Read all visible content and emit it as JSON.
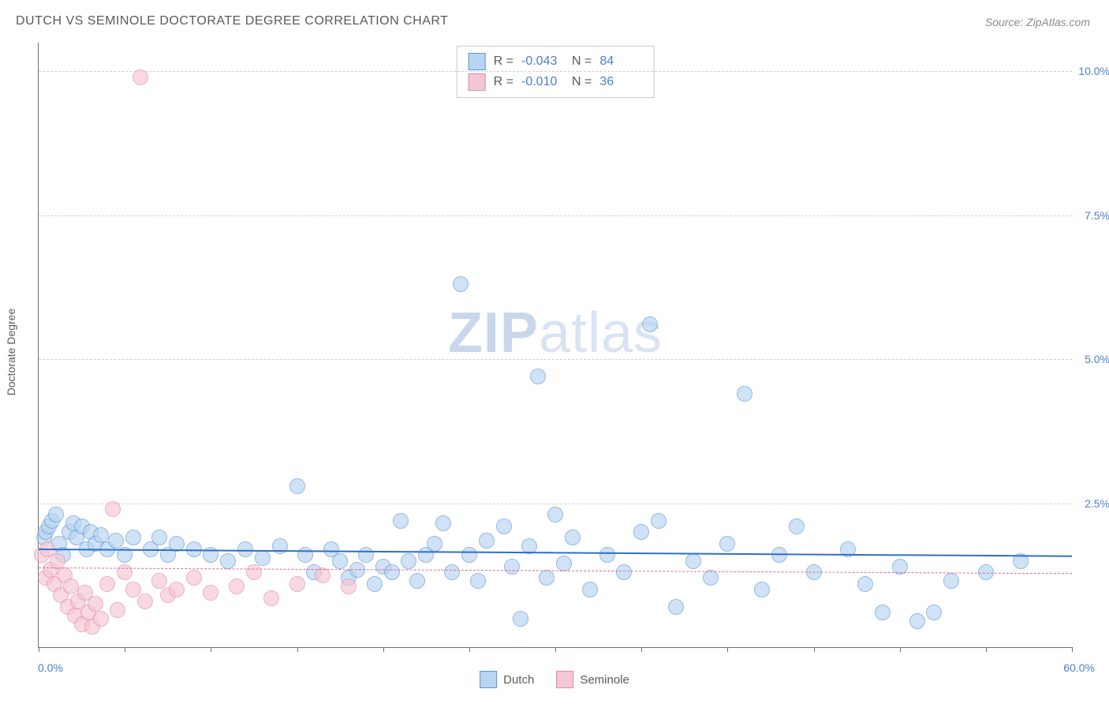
{
  "title": "DUTCH VS SEMINOLE DOCTORATE DEGREE CORRELATION CHART",
  "source": "Source: ZipAtlas.com",
  "ylabel": "Doctorate Degree",
  "watermark_bold": "ZIP",
  "watermark_light": "atlas",
  "chart": {
    "type": "scatter",
    "background_color": "#ffffff",
    "grid_color": "#d0d0d0",
    "axis_color": "#707070",
    "xlim": [
      0,
      60
    ],
    "ylim": [
      0,
      10.5
    ],
    "x_min_label": "0.0%",
    "x_max_label": "60.0%",
    "x_ticks": [
      0,
      5,
      10,
      15,
      20,
      25,
      30,
      35,
      40,
      45,
      50,
      55,
      60
    ],
    "y_gridlines": [
      2.5,
      5.0,
      7.5,
      10.0
    ],
    "y_grid_labels": [
      "2.5%",
      "5.0%",
      "7.5%",
      "10.0%"
    ],
    "marker_radius": 9,
    "marker_stroke_width": 1,
    "series": [
      {
        "name": "Dutch",
        "fill": "#b8d4f0",
        "stroke": "#5c96d6",
        "fill_opacity": 0.65,
        "r_value": "-0.043",
        "n_value": "84",
        "trend": {
          "y_at_xmin": 1.72,
          "y_at_xmax": 1.6,
          "color": "#2e6fc9",
          "width": 2.5,
          "dash": "solid"
        },
        "points": [
          [
            0.3,
            1.9
          ],
          [
            0.4,
            2.0
          ],
          [
            0.6,
            2.1
          ],
          [
            0.8,
            2.2
          ],
          [
            1.0,
            2.3
          ],
          [
            1.2,
            1.8
          ],
          [
            1.4,
            1.6
          ],
          [
            1.8,
            2.0
          ],
          [
            2.0,
            2.15
          ],
          [
            2.2,
            1.9
          ],
          [
            2.5,
            2.1
          ],
          [
            2.8,
            1.7
          ],
          [
            3.0,
            2.0
          ],
          [
            3.3,
            1.8
          ],
          [
            3.6,
            1.95
          ],
          [
            4.0,
            1.7
          ],
          [
            4.5,
            1.85
          ],
          [
            5.0,
            1.6
          ],
          [
            5.5,
            1.9
          ],
          [
            6.5,
            1.7
          ],
          [
            7.0,
            1.9
          ],
          [
            7.5,
            1.6
          ],
          [
            8.0,
            1.8
          ],
          [
            9.0,
            1.7
          ],
          [
            10.0,
            1.6
          ],
          [
            11.0,
            1.5
          ],
          [
            12.0,
            1.7
          ],
          [
            13.0,
            1.55
          ],
          [
            14.0,
            1.75
          ],
          [
            15.0,
            2.8
          ],
          [
            15.5,
            1.6
          ],
          [
            16.0,
            1.3
          ],
          [
            17.0,
            1.7
          ],
          [
            17.5,
            1.5
          ],
          [
            18.0,
            1.2
          ],
          [
            18.5,
            1.35
          ],
          [
            19.0,
            1.6
          ],
          [
            19.5,
            1.1
          ],
          [
            20.0,
            1.4
          ],
          [
            20.5,
            1.3
          ],
          [
            21.0,
            2.2
          ],
          [
            21.5,
            1.5
          ],
          [
            22.0,
            1.15
          ],
          [
            22.5,
            1.6
          ],
          [
            23.0,
            1.8
          ],
          [
            23.5,
            2.15
          ],
          [
            24.0,
            1.3
          ],
          [
            24.5,
            6.3
          ],
          [
            25.0,
            1.6
          ],
          [
            25.5,
            1.15
          ],
          [
            26.0,
            1.85
          ],
          [
            27.0,
            2.1
          ],
          [
            27.5,
            1.4
          ],
          [
            28.0,
            0.5
          ],
          [
            28.5,
            1.75
          ],
          [
            29.0,
            4.7
          ],
          [
            29.5,
            1.2
          ],
          [
            30.0,
            2.3
          ],
          [
            30.5,
            1.45
          ],
          [
            31.0,
            1.9
          ],
          [
            32.0,
            1.0
          ],
          [
            33.0,
            1.6
          ],
          [
            34.0,
            1.3
          ],
          [
            35.0,
            2.0
          ],
          [
            35.5,
            5.6
          ],
          [
            36.0,
            2.2
          ],
          [
            37.0,
            0.7
          ],
          [
            38.0,
            1.5
          ],
          [
            39.0,
            1.2
          ],
          [
            40.0,
            1.8
          ],
          [
            41.0,
            4.4
          ],
          [
            42.0,
            1.0
          ],
          [
            43.0,
            1.6
          ],
          [
            44.0,
            2.1
          ],
          [
            45.0,
            1.3
          ],
          [
            47.0,
            1.7
          ],
          [
            48.0,
            1.1
          ],
          [
            49.0,
            0.6
          ],
          [
            50.0,
            1.4
          ],
          [
            51.0,
            0.45
          ],
          [
            52.0,
            0.6
          ],
          [
            53.0,
            1.15
          ],
          [
            55.0,
            1.3
          ],
          [
            57.0,
            1.5
          ]
        ]
      },
      {
        "name": "Seminole",
        "fill": "#f5c6d4",
        "stroke": "#e08aa8",
        "fill_opacity": 0.65,
        "r_value": "-0.010",
        "n_value": "36",
        "trend": {
          "y_at_xmin": 1.38,
          "y_at_xmax": 1.28,
          "color": "#d96a8f",
          "width": 1.5,
          "dash": "dashed"
        },
        "points": [
          [
            0.2,
            1.6
          ],
          [
            0.4,
            1.2
          ],
          [
            0.5,
            1.7
          ],
          [
            0.7,
            1.35
          ],
          [
            0.9,
            1.1
          ],
          [
            1.1,
            1.5
          ],
          [
            1.3,
            0.9
          ],
          [
            1.5,
            1.25
          ],
          [
            1.7,
            0.7
          ],
          [
            1.9,
            1.05
          ],
          [
            2.1,
            0.55
          ],
          [
            2.3,
            0.8
          ],
          [
            2.5,
            0.4
          ],
          [
            2.7,
            0.95
          ],
          [
            2.9,
            0.6
          ],
          [
            3.1,
            0.35
          ],
          [
            3.3,
            0.75
          ],
          [
            3.6,
            0.5
          ],
          [
            4.0,
            1.1
          ],
          [
            4.3,
            2.4
          ],
          [
            4.6,
            0.65
          ],
          [
            5.0,
            1.3
          ],
          [
            5.5,
            1.0
          ],
          [
            5.9,
            9.9
          ],
          [
            6.2,
            0.8
          ],
          [
            7.0,
            1.15
          ],
          [
            7.5,
            0.9
          ],
          [
            8.0,
            1.0
          ],
          [
            9.0,
            1.2
          ],
          [
            10.0,
            0.95
          ],
          [
            11.5,
            1.05
          ],
          [
            12.5,
            1.3
          ],
          [
            13.5,
            0.85
          ],
          [
            15.0,
            1.1
          ],
          [
            16.5,
            1.25
          ],
          [
            18.0,
            1.05
          ]
        ]
      }
    ]
  },
  "legend": {
    "r_label": "R =",
    "n_label": "N ="
  }
}
